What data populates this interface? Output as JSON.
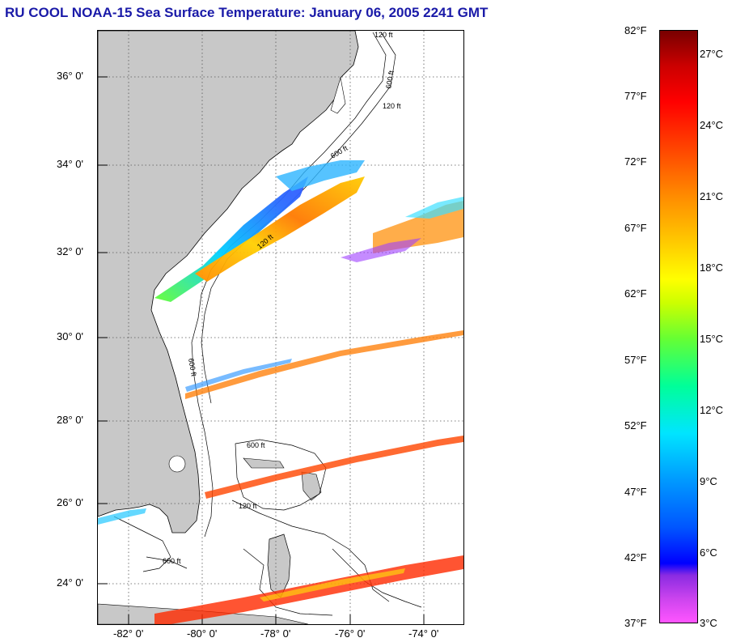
{
  "title": "RU COOL  NOAA-15  Sea Surface Temperature:  January 06, 2005 2241 GMT",
  "map": {
    "lat_labels": [
      "36° 0'",
      "34° 0'",
      "32° 0'",
      "30° 0'",
      "28° 0'",
      "26° 0'",
      "24° 0'"
    ],
    "lon_labels": [
      "-82° 0'",
      "-80° 0'",
      "-78° 0'",
      "-76° 0'",
      "-74° 0'"
    ],
    "contour_labels": [
      "120 ft",
      "600 ft",
      "120 ft",
      "600 ft",
      "120 ft",
      "600 ft",
      "120 ft",
      "600 ft",
      "600 ft"
    ],
    "colors": {
      "land": "#c8c8c8",
      "ocean": "#ffffff",
      "grid": "#555555",
      "contour": "#000000"
    }
  },
  "colorbar": {
    "fahrenheit_labels": [
      "82°F",
      "77°F",
      "72°F",
      "67°F",
      "62°F",
      "57°F",
      "52°F",
      "47°F",
      "42°F",
      "37°F"
    ],
    "celsius_labels": [
      "27°C",
      "24°C",
      "21°C",
      "18°C",
      "15°C",
      "12°C",
      "9°C",
      "6°C",
      "3°C"
    ],
    "range_f": [
      37,
      82
    ],
    "colors": [
      "#ff55ff",
      "#9933cc",
      "#0000ff",
      "#0080ff",
      "#00e5ff",
      "#00ff80",
      "#80ff00",
      "#ffff00",
      "#ffa500",
      "#ff5000",
      "#ff0000",
      "#780000"
    ]
  }
}
